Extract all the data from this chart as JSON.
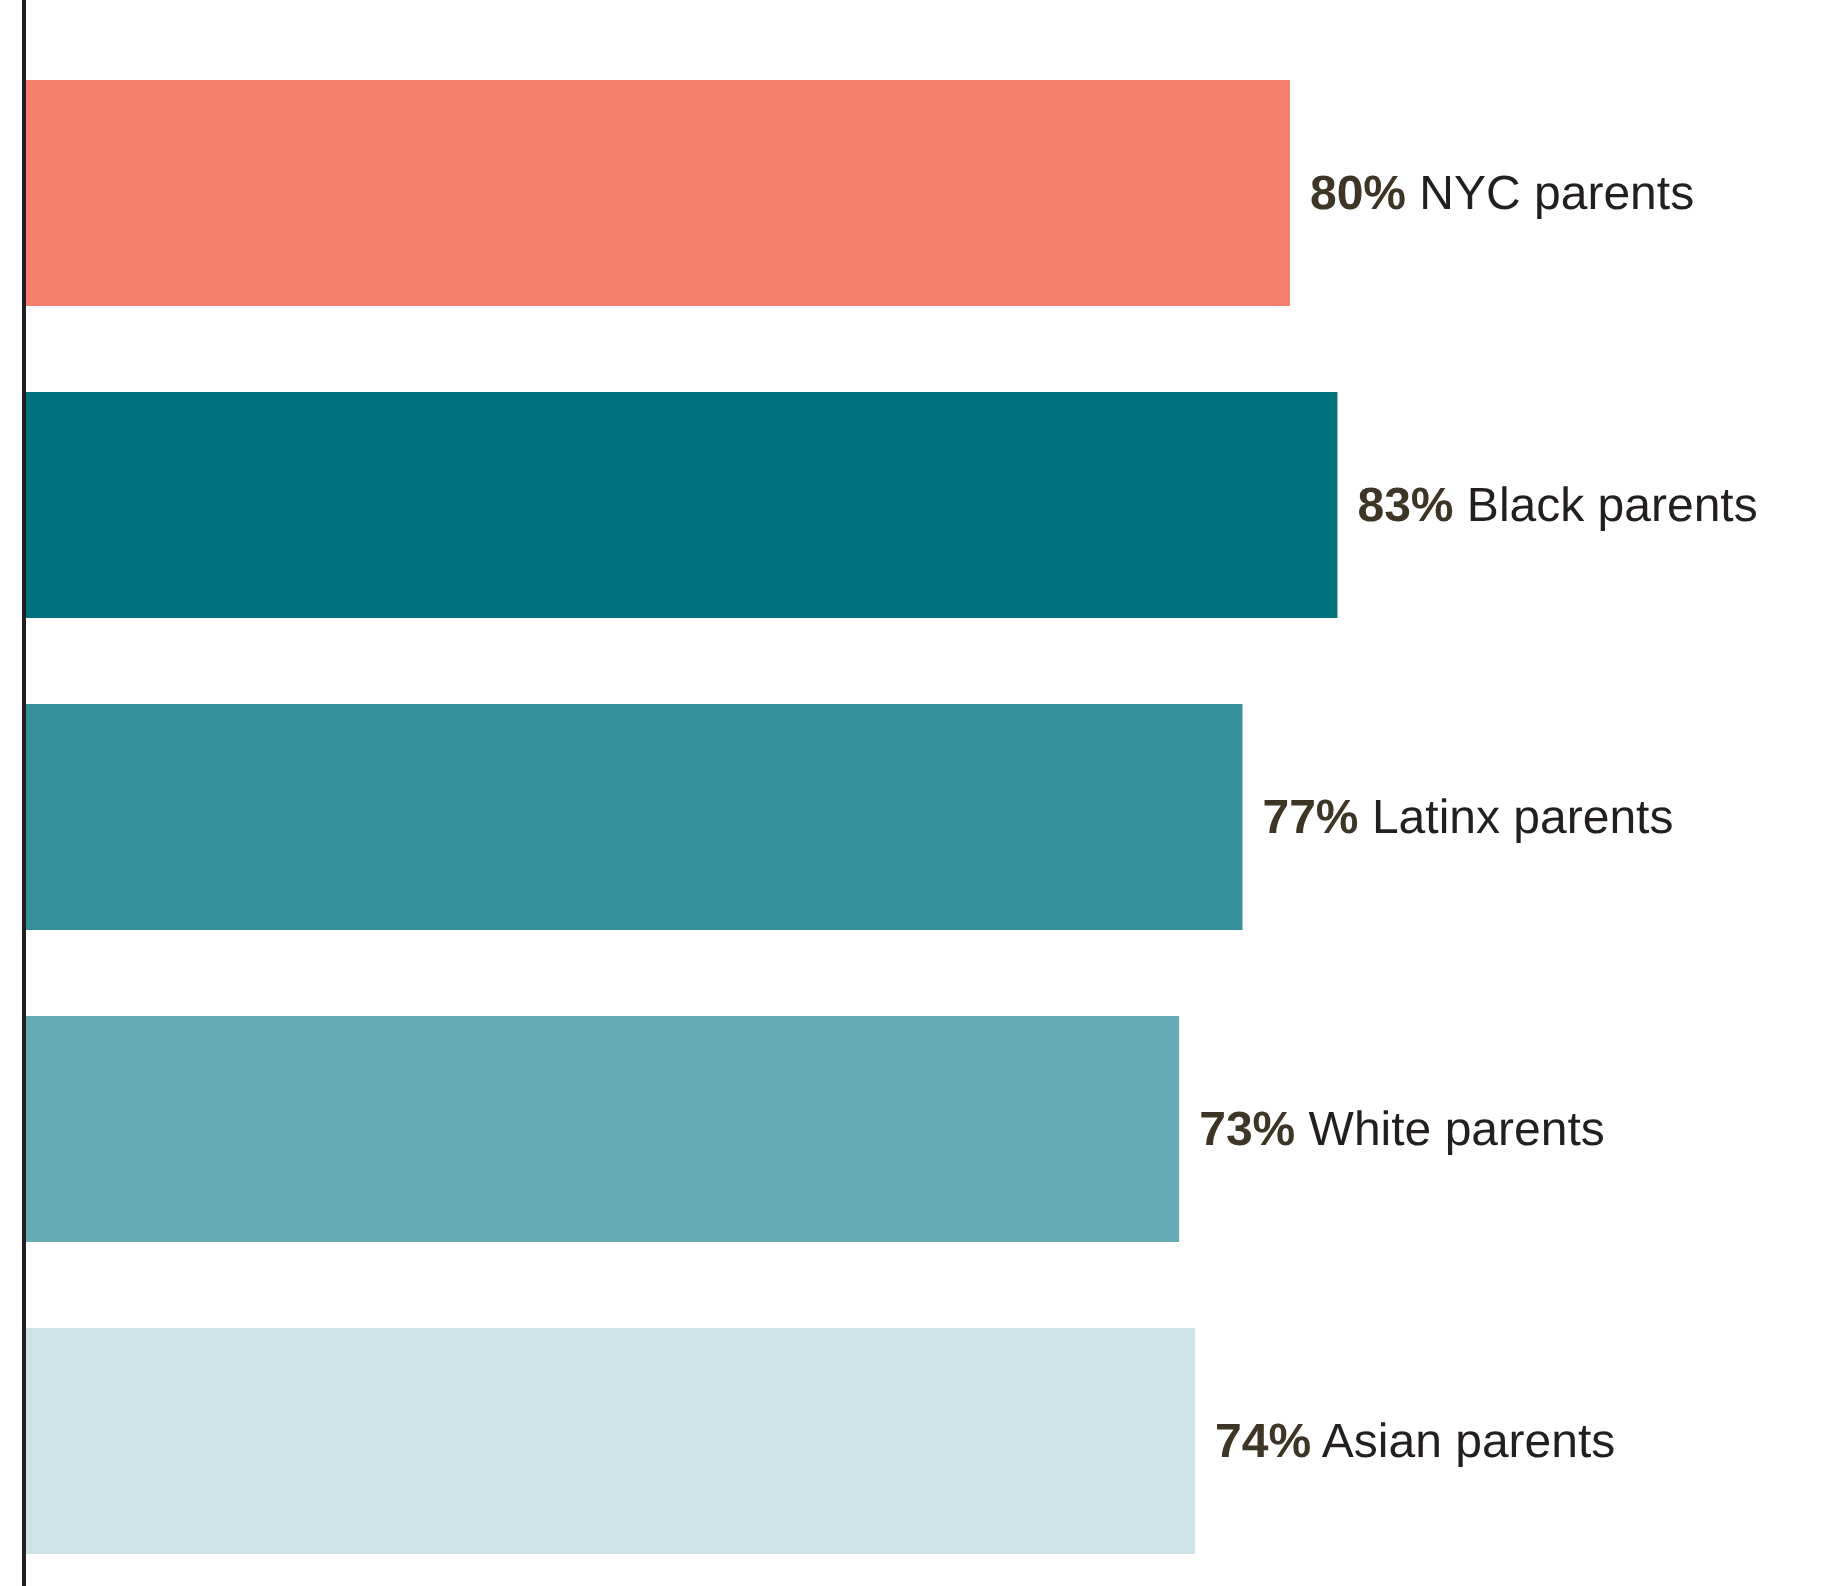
{
  "chart_data": {
    "type": "bar",
    "orientation": "horizontal",
    "categories": [
      "NYC parents",
      "Black parents",
      "Latinx parents",
      "White parents",
      "Asian parents"
    ],
    "values": [
      80,
      83,
      77,
      73,
      74
    ],
    "value_labels": [
      "80%",
      "83%",
      "77%",
      "73%",
      "74%"
    ],
    "colors": [
      "#f4806d",
      "#00727d",
      "#35909a",
      "#66aab3",
      "#cde3e5"
    ],
    "xlim": [
      0,
      114
    ]
  }
}
